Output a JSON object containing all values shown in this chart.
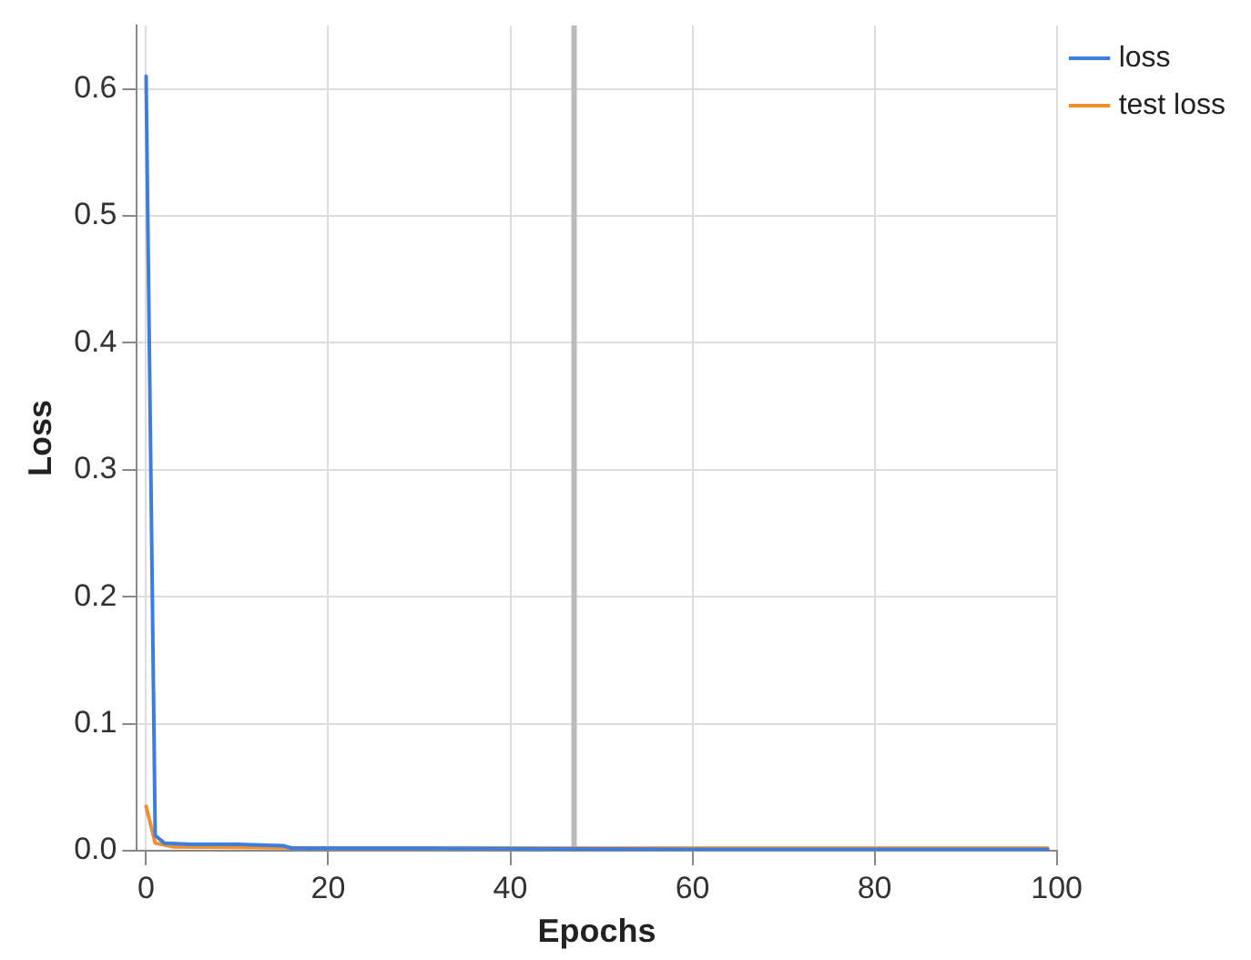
{
  "chart_data": {
    "type": "line",
    "xlabel": "Epochs",
    "ylabel": "Loss",
    "series": [
      {
        "name": "loss",
        "color": "#3c7ee0",
        "x": [
          0,
          1,
          2,
          5,
          10,
          15,
          16,
          30,
          60,
          99
        ],
        "values": [
          0.61,
          0.012,
          0.006,
          0.005,
          0.005,
          0.004,
          0.002,
          0.002,
          0.001,
          0.001
        ]
      },
      {
        "name": "test loss",
        "color": "#f28e2b",
        "x": [
          0,
          1,
          3,
          20,
          99
        ],
        "values": [
          0.035,
          0.006,
          0.003,
          0.002,
          0.002
        ]
      }
    ],
    "xlim": [
      -1,
      100
    ],
    "xticks": [
      0,
      20,
      40,
      60,
      80,
      100
    ],
    "ylim": [
      0,
      0.65
    ],
    "yticks": [
      {
        "value": 0,
        "label": "0.0"
      },
      0.1,
      0.2,
      0.3,
      0.4,
      0.5,
      0.6
    ],
    "ref_lines": [
      {
        "axis": "x",
        "value": 47,
        "color": "#bbbbbb"
      }
    ],
    "grid": true,
    "legend": "top right",
    "marker": "none",
    "line_style": "solid"
  }
}
